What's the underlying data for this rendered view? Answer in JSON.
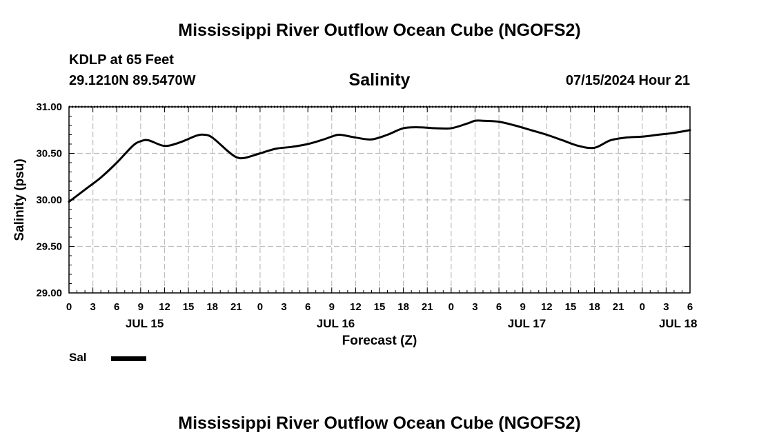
{
  "header": {
    "title": "Mississippi River Outflow Ocean Cube (NGOFS2)",
    "station": "KDLP at 65 Feet",
    "coords": "29.1210N  89.5470W",
    "parameter": "Salinity",
    "datetime": "07/15/2024 Hour 21"
  },
  "footer": {
    "title": "Mississippi River Outflow Ocean Cube (NGOFS2)"
  },
  "legend": {
    "label": "Sal",
    "color": "#000000"
  },
  "chart_data": {
    "type": "line",
    "title": "Salinity",
    "xlabel": "Forecast (Z)",
    "ylabel": "Salinity (psu)",
    "xlim": [
      0,
      78
    ],
    "ylim": [
      29.0,
      31.0
    ],
    "yticks": [
      "29.00",
      "29.50",
      "30.00",
      "30.50",
      "31.00"
    ],
    "xtick_labels": [
      "0",
      "3",
      "6",
      "9",
      "12",
      "15",
      "18",
      "21",
      "0",
      "3",
      "6",
      "9",
      "12",
      "15",
      "18",
      "21",
      "0",
      "3",
      "6",
      "9",
      "12",
      "15",
      "18",
      "21",
      "0",
      "3",
      "6"
    ],
    "date_labels": [
      {
        "label": "JUL 15",
        "hour": 9.5
      },
      {
        "label": "JUL 16",
        "hour": 33.5
      },
      {
        "label": "JUL 17",
        "hour": 57.5
      },
      {
        "label": "JUL 18",
        "hour": 76.5
      }
    ],
    "grid": true,
    "series": [
      {
        "name": "Sal",
        "x": [
          0,
          2,
          4,
          6,
          8,
          9,
          10,
          12,
          14,
          16,
          17,
          18,
          20,
          21,
          22,
          24,
          26,
          28,
          30,
          32,
          33,
          34,
          36,
          38,
          40,
          42,
          44,
          46,
          48,
          50,
          51,
          52,
          54,
          56,
          58,
          60,
          62,
          64,
          66,
          68,
          70,
          72,
          74,
          76,
          78
        ],
        "y": [
          29.98,
          30.11,
          30.24,
          30.4,
          30.58,
          30.63,
          30.64,
          30.58,
          30.62,
          30.69,
          30.7,
          30.67,
          30.52,
          30.46,
          30.45,
          30.5,
          30.55,
          30.57,
          30.6,
          30.65,
          30.68,
          30.7,
          30.67,
          30.65,
          30.7,
          30.77,
          30.78,
          30.77,
          30.77,
          30.82,
          30.85,
          30.85,
          30.84,
          30.8,
          30.75,
          30.7,
          30.64,
          30.58,
          30.56,
          30.64,
          30.67,
          30.68,
          30.7,
          30.72,
          30.75
        ]
      }
    ]
  }
}
